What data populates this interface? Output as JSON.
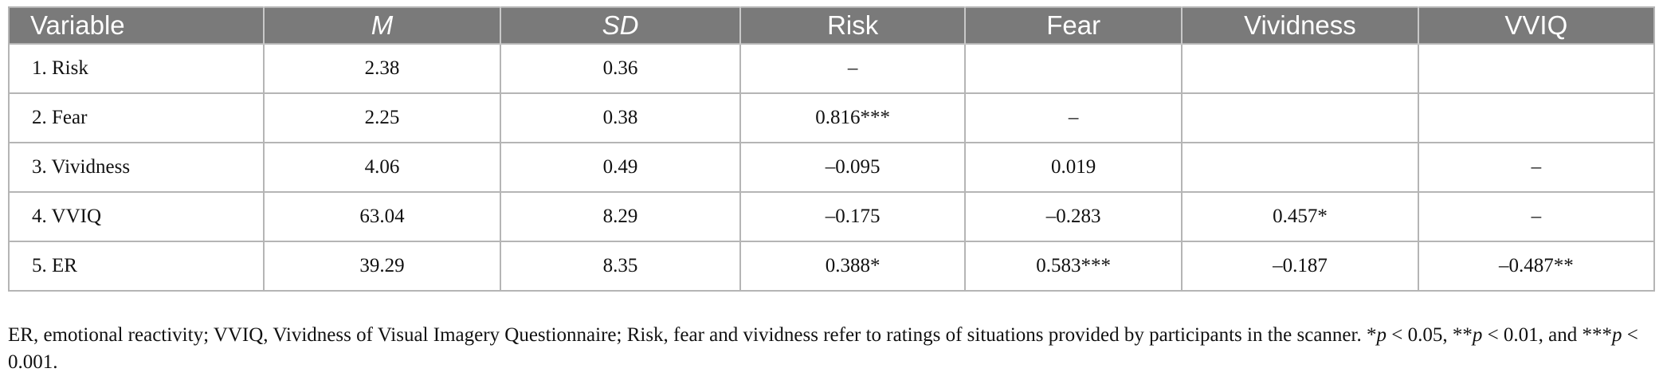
{
  "table": {
    "headers": [
      "Variable",
      "M",
      "SD",
      "Risk",
      "Fear",
      "Vividness",
      "VVIQ"
    ],
    "rows": [
      [
        "1. Risk",
        "2.38",
        "0.36",
        "–",
        "",
        "",
        ""
      ],
      [
        "2. Fear",
        "2.25",
        "0.38",
        "0.816***",
        "–",
        "",
        ""
      ],
      [
        "3. Vividness",
        "4.06",
        "0.49",
        "–0.095",
        "0.019",
        "",
        "–"
      ],
      [
        "4. VVIQ",
        "63.04",
        "8.29",
        "–0.175",
        "–0.283",
        "0.457*",
        "–"
      ],
      [
        "5. ER",
        "39.29",
        "8.35",
        "0.388*",
        "0.583***",
        "–0.187",
        "–0.487**"
      ]
    ]
  },
  "note": {
    "text": "ER, emotional reactivity; VVIQ, Vividness of Visual Imagery Questionnaire; Risk, fear and vividness refer to ratings of situations provided by participants in the scanner. ",
    "p1_sym": "*",
    "p1_var": "p",
    "p1_rest": " < 0.05, ",
    "p2_sym": "**",
    "p2_var": "p",
    "p2_rest": " < 0.01, and ",
    "p3_sym": "***",
    "p3_var": "p",
    "p3_rest": " < 0.001."
  }
}
